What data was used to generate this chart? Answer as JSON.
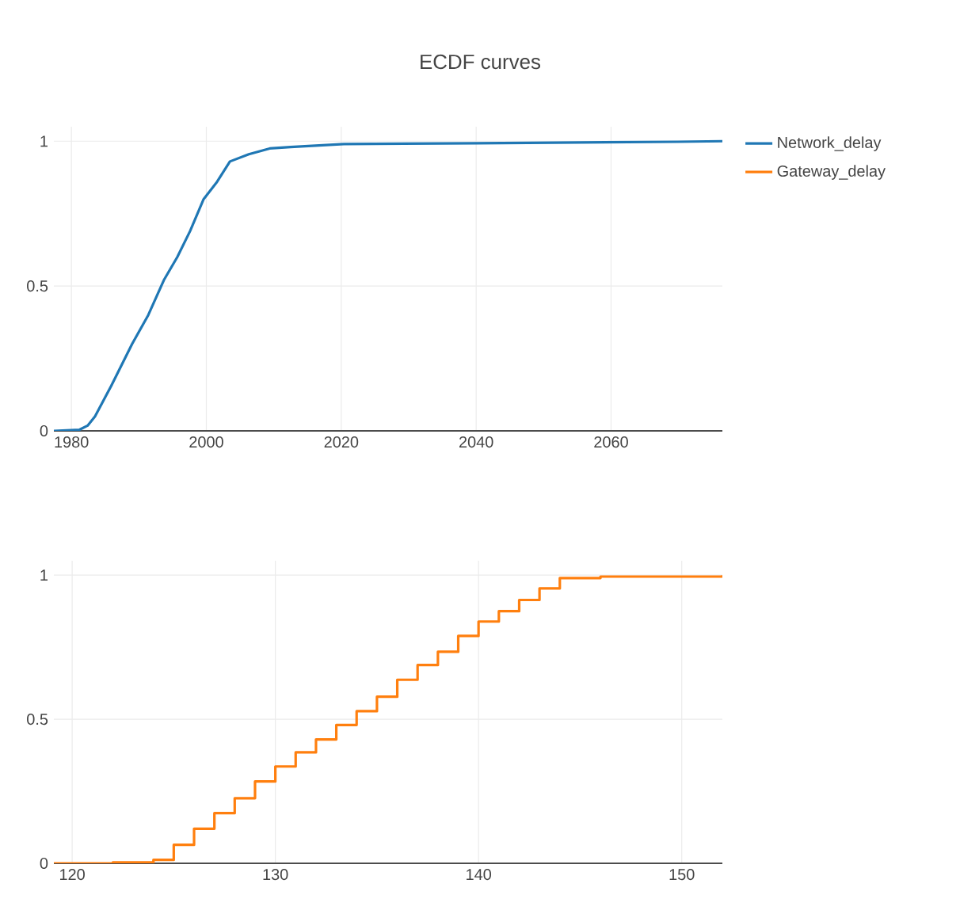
{
  "chart_data": [
    {
      "type": "line",
      "title": "ECDF curves",
      "xlim": [
        1977.4,
        2076.5
      ],
      "ylim": [
        0,
        1.05
      ],
      "xticks": [
        1980,
        2000,
        2020,
        2040,
        2060
      ],
      "yticks": [
        0,
        0.5,
        1
      ],
      "grid": true,
      "legend": "top right",
      "series": [
        {
          "name": "Network_delay",
          "color": "#1f77b4",
          "x": [
            1977.4,
            1981.2,
            1982.4,
            1983.5,
            1985.9,
            1989.0,
            1991.4,
            1993.7,
            1995.7,
            1997.6,
            1999.6,
            2001.6,
            2003.5,
            2006.3,
            2009.4,
            2012.5,
            2020.4,
            2040,
            2069.8,
            2076.5
          ],
          "values": [
            0,
            0.004,
            0.018,
            0.05,
            0.155,
            0.3,
            0.4,
            0.52,
            0.6,
            0.69,
            0.8,
            0.86,
            0.93,
            0.955,
            0.975,
            0.98,
            0.99,
            0.993,
            0.998,
            1.0
          ]
        }
      ]
    },
    {
      "type": "step",
      "xlim": [
        119.1,
        152
      ],
      "ylim": [
        0,
        1.05
      ],
      "xticks": [
        120,
        130,
        140,
        150
      ],
      "yticks": [
        0,
        0.5,
        1
      ],
      "grid": true,
      "legend": "top right",
      "series": [
        {
          "name": "Gateway_delay",
          "color": "#ff7f0e",
          "x": [
            119.1,
            122,
            124,
            125,
            126,
            127,
            128,
            129,
            130,
            131,
            132,
            133,
            134,
            135,
            136,
            137,
            138,
            139,
            140,
            141,
            142,
            143,
            144,
            146,
            152
          ],
          "values": [
            0,
            0.003,
            0.012,
            0.064,
            0.12,
            0.174,
            0.226,
            0.284,
            0.336,
            0.385,
            0.43,
            0.48,
            0.528,
            0.578,
            0.637,
            0.688,
            0.734,
            0.789,
            0.839,
            0.875,
            0.914,
            0.954,
            0.99,
            0.995,
            1.0
          ]
        }
      ]
    }
  ]
}
